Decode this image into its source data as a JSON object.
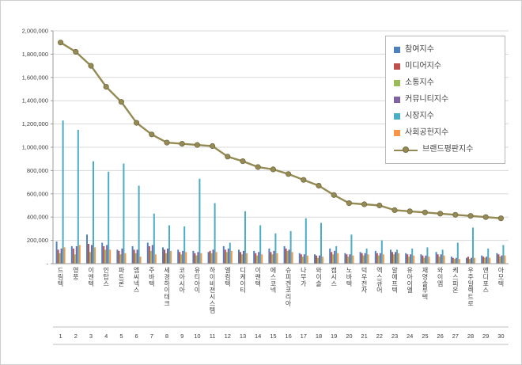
{
  "chart_data": {
    "type": "bar",
    "title": "",
    "xlabel": "",
    "ylabel": "",
    "ylim": [
      0,
      2000000
    ],
    "ytick_step": 200000,
    "ytick_labels": [
      "-",
      "200,000",
      "400,000",
      "600,000",
      "800,000",
      "1,000,000",
      "1,200,000",
      "1,400,000",
      "1,600,000",
      "1,800,000",
      "2,000,000"
    ],
    "grid": true,
    "legend_position": "top-right",
    "categories": [
      "드림텍",
      "영풍",
      "이엔텍",
      "인탑스",
      "파트론",
      "엠씨넥스",
      "주바텍",
      "세경하이테크",
      "코아시아",
      "유티아이",
      "하이비젼시스템",
      "엘컴텍",
      "디케이티",
      "이랜텍",
      "에스코넥",
      "슈피겐코리아",
      "나무가",
      "와이솔",
      "캠시스",
      "노바텍",
      "덕우전자",
      "엑스큐어",
      "알에프텍",
      "유아이엘",
      "재영솔루텍",
      "와이엠",
      "케스피온",
      "우주일렉트로",
      "앤디포스",
      "아모텍"
    ],
    "rank_labels": [
      "1",
      "2",
      "3",
      "4",
      "5",
      "6",
      "7",
      "8",
      "9",
      "10",
      "11",
      "12",
      "13",
      "14",
      "15",
      "16",
      "17",
      "18",
      "19",
      "20",
      "21",
      "22",
      "23",
      "24",
      "25",
      "26",
      "27",
      "28",
      "29",
      "30"
    ],
    "series": [
      {
        "name": "참여지수",
        "color": "#4F81BD",
        "values": [
          190000,
          150000,
          250000,
          180000,
          120000,
          150000,
          180000,
          140000,
          120000,
          110000,
          100000,
          150000,
          120000,
          110000,
          130000,
          150000,
          90000,
          80000,
          130000,
          90000,
          100000,
          110000,
          120000,
          90000,
          80000,
          100000,
          60000,
          50000,
          70000,
          90000
        ]
      },
      {
        "name": "미디어지수",
        "color": "#C0504D",
        "values": [
          120000,
          130000,
          170000,
          150000,
          110000,
          120000,
          150000,
          120000,
          100000,
          90000,
          110000,
          120000,
          100000,
          90000,
          100000,
          130000,
          80000,
          70000,
          100000,
          80000,
          90000,
          90000,
          100000,
          80000,
          70000,
          80000,
          50000,
          60000,
          60000,
          80000
        ]
      },
      {
        "name": "소통지수",
        "color": "#9BBB59",
        "values": [
          90000,
          80000,
          100000,
          120000,
          80000,
          90000,
          110000,
          90000,
          80000,
          70000,
          90000,
          100000,
          80000,
          70000,
          80000,
          110000,
          60000,
          50000,
          80000,
          60000,
          70000,
          70000,
          80000,
          60000,
          50000,
          60000,
          40000,
          40000,
          50000,
          60000
        ]
      },
      {
        "name": "커뮤니티지수",
        "color": "#8064A2",
        "values": [
          130000,
          150000,
          160000,
          160000,
          130000,
          120000,
          160000,
          130000,
          110000,
          100000,
          120000,
          130000,
          110000,
          100000,
          110000,
          120000,
          80000,
          70000,
          110000,
          80000,
          90000,
          90000,
          100000,
          80000,
          70000,
          80000,
          50000,
          50000,
          60000,
          70000
        ]
      },
      {
        "name": "시장지수",
        "color": "#4BACC6",
        "values": [
          1230000,
          1150000,
          880000,
          790000,
          860000,
          670000,
          430000,
          330000,
          320000,
          730000,
          520000,
          180000,
          450000,
          330000,
          260000,
          280000,
          390000,
          350000,
          150000,
          250000,
          130000,
          200000,
          120000,
          130000,
          140000,
          120000,
          180000,
          310000,
          130000,
          160000
        ]
      },
      {
        "name": "사회공헌지수",
        "color": "#F79646",
        "values": [
          140000,
          160000,
          140000,
          120000,
          90000,
          60000,
          80000,
          110000,
          100000,
          90000,
          100000,
          110000,
          90000,
          80000,
          90000,
          100000,
          70000,
          60000,
          90000,
          70000,
          80000,
          80000,
          90000,
          70000,
          60000,
          70000,
          40000,
          50000,
          50000,
          70000
        ]
      }
    ],
    "line_series": {
      "name": "브랜드평판지수",
      "color": "#948A54",
      "values": [
        1900000,
        1820000,
        1700000,
        1520000,
        1390000,
        1210000,
        1110000,
        1040000,
        1030000,
        1020000,
        1010000,
        920000,
        880000,
        830000,
        810000,
        770000,
        720000,
        670000,
        590000,
        520000,
        510000,
        500000,
        460000,
        450000,
        440000,
        430000,
        420000,
        410000,
        400000,
        390000
      ]
    }
  }
}
